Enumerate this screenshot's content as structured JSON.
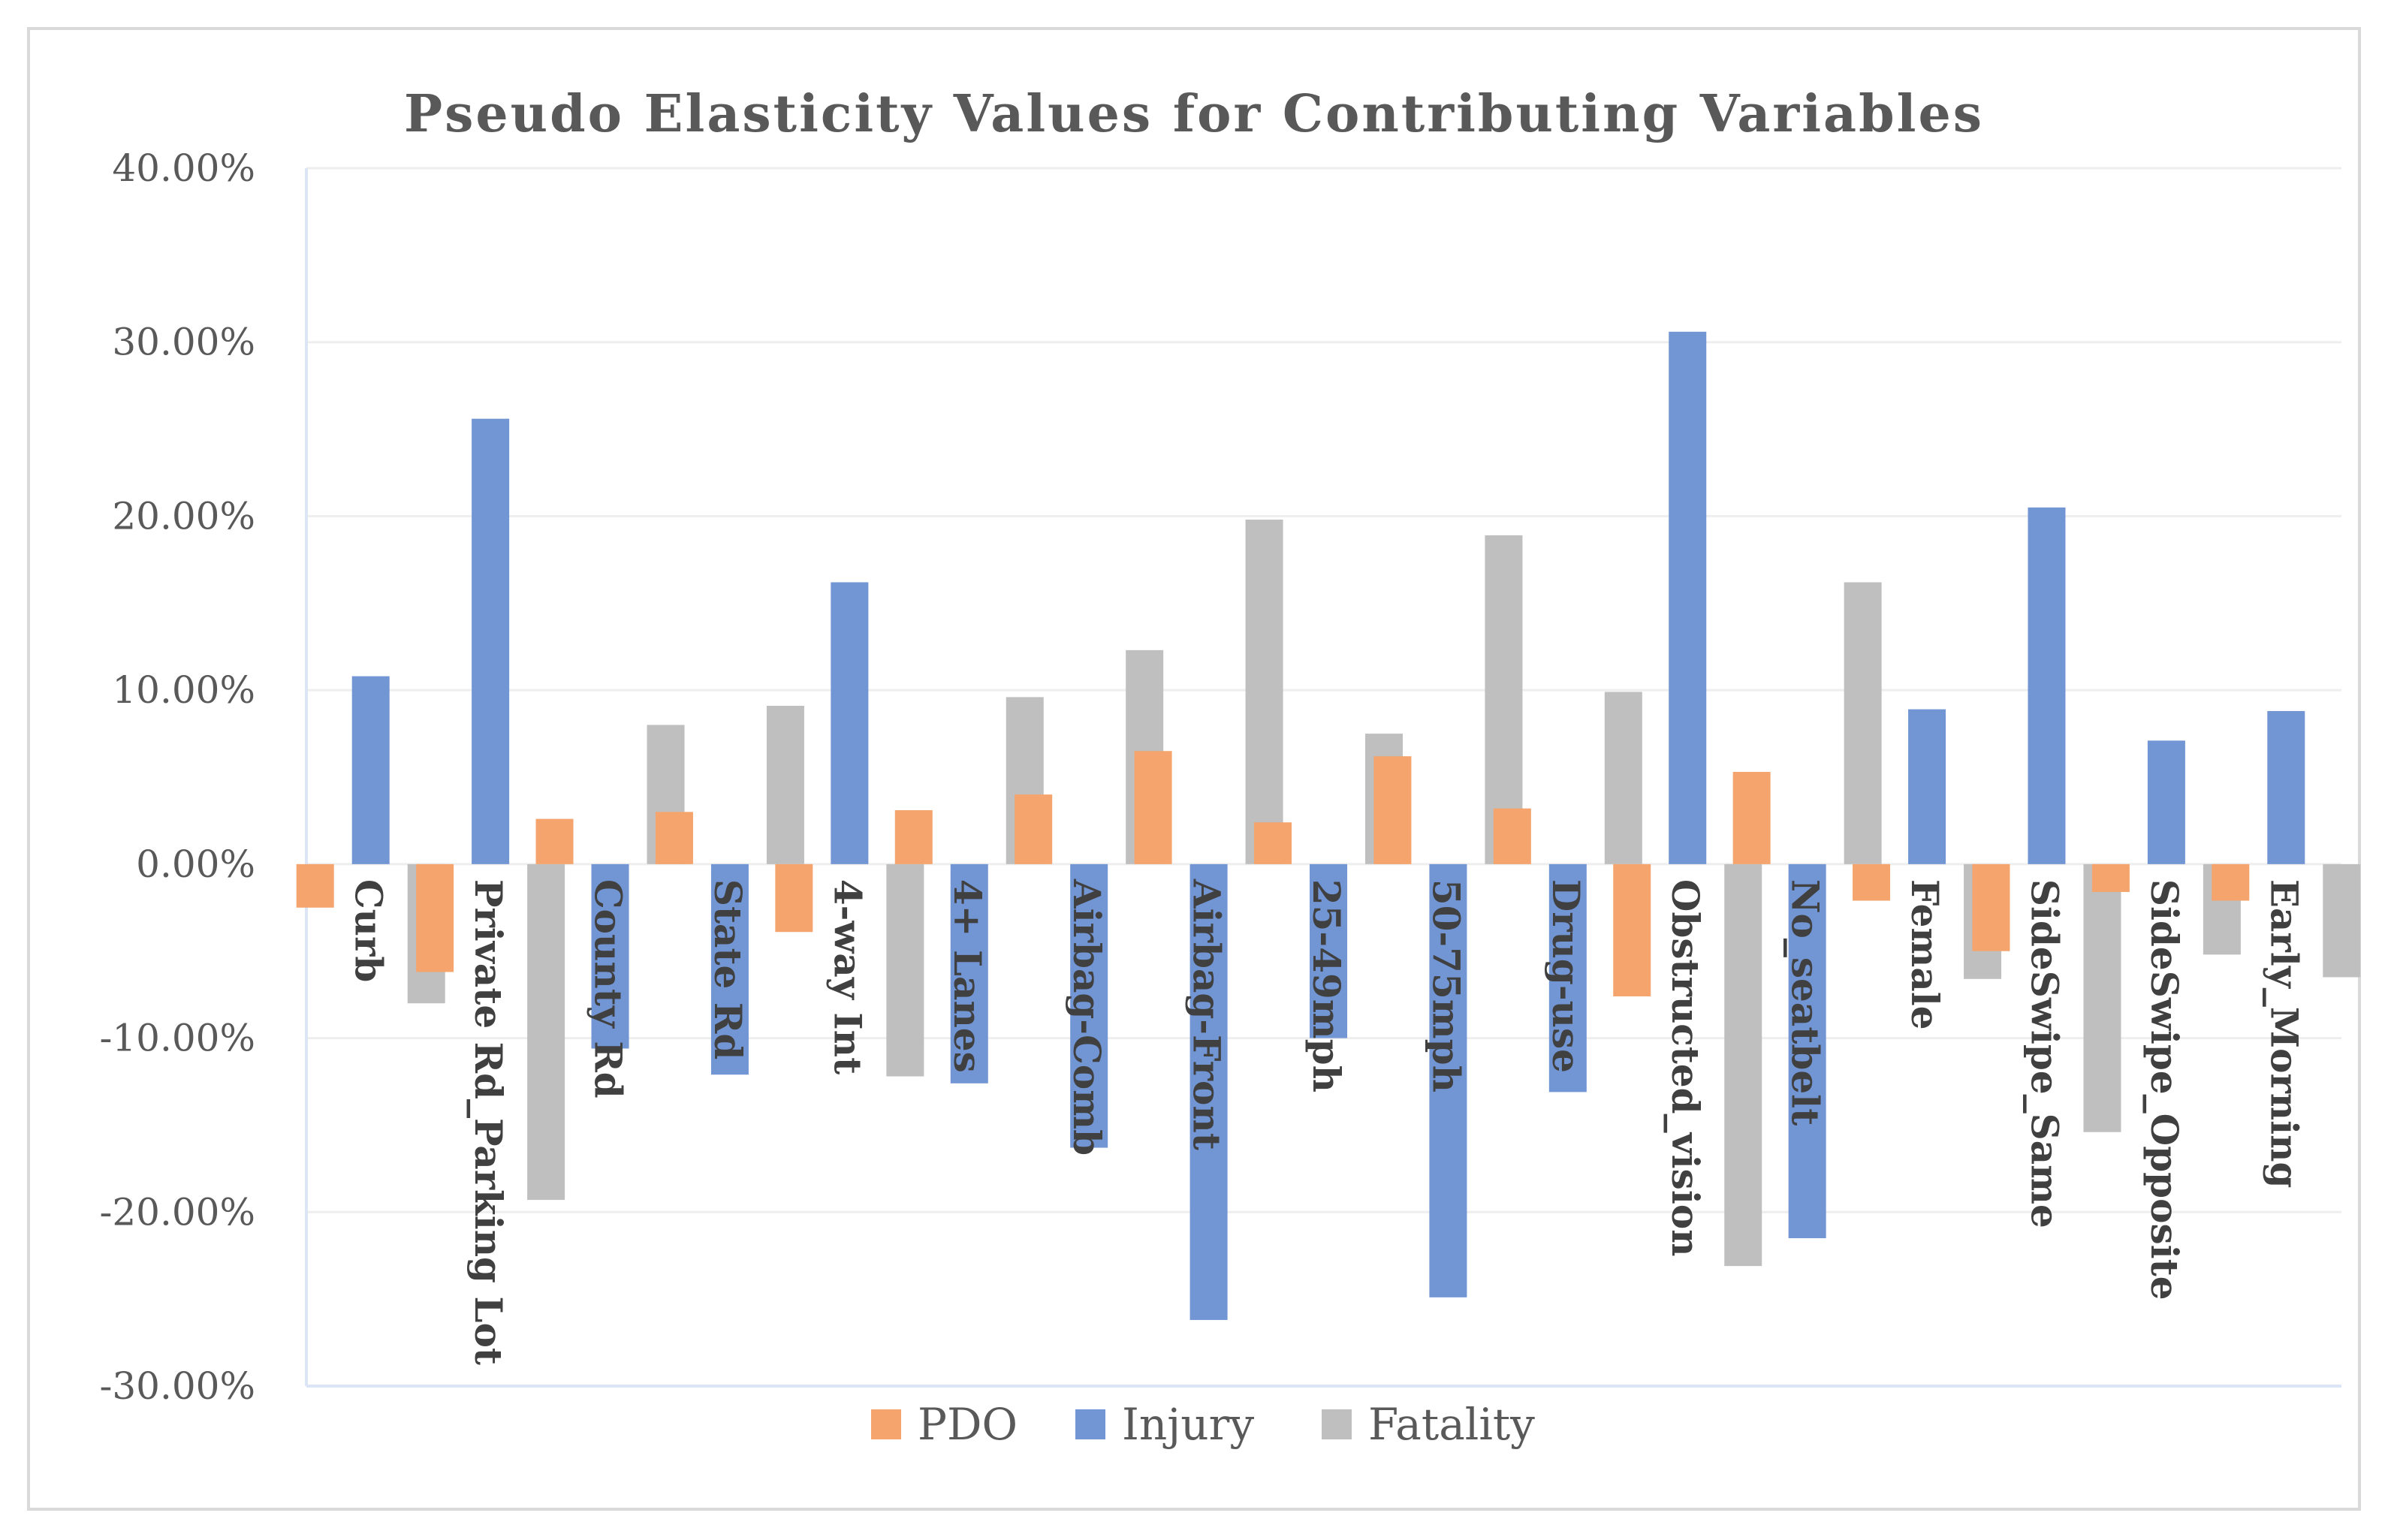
{
  "chart_data": {
    "type": "bar",
    "title": "Pseudo Elasticity Values for Contributing Variables",
    "xlabel": "",
    "ylabel": "",
    "ylim": [
      -30,
      40
    ],
    "y_ticks": [
      "40.00%",
      "30.00%",
      "20.00%",
      "10.00%",
      "0.00%",
      "-10.00%",
      "-20.00%",
      "-30.00%"
    ],
    "y_tick_values": [
      40,
      30,
      20,
      10,
      0,
      -10,
      -20,
      -30
    ],
    "gridlines": true,
    "legend_position": "bottom",
    "categories": [
      "Curb",
      "Private Rd_Parking Lot",
      "County Rd",
      "State Rd",
      "4-way Int",
      "4+ Lanes",
      "Airbag-Comb",
      "Airbag-Front",
      "25-49mph",
      "50-75mph",
      "Drug-use",
      "Obstructed_vision",
      "No_seatbelt",
      "Female",
      "SideSwipe_Same",
      "SideSwipe_Opposite",
      "Early_Morning"
    ],
    "series": [
      {
        "name": "PDO",
        "color": "#f4a46c",
        "values": [
          {
            "pos": -2.5,
            "neg": null
          },
          {
            "pos": -6.2,
            "neg": null
          },
          {
            "pos": 2.6,
            "neg": null
          },
          {
            "pos": 3.0,
            "neg": null
          },
          {
            "pos": -3.9,
            "neg": null
          },
          {
            "pos": 3.1,
            "neg": null
          },
          {
            "pos": 4.0,
            "neg": null
          },
          {
            "pos": 6.5,
            "neg": null
          },
          {
            "pos": 2.4,
            "neg": null
          },
          {
            "pos": 6.2,
            "neg": null
          },
          {
            "pos": 3.2,
            "neg": null
          },
          {
            "pos": -7.6,
            "neg": null
          },
          {
            "pos": 5.3,
            "neg": null
          },
          {
            "pos": -2.1,
            "neg": null
          },
          {
            "pos": -5.0,
            "neg": null
          },
          {
            "pos": -1.6,
            "neg": null
          },
          {
            "pos": -2.1,
            "neg": null
          }
        ]
      },
      {
        "name": "Injury",
        "color": "#7295d4",
        "values": [
          {
            "pos": 10.8,
            "neg": null
          },
          {
            "pos": 25.6,
            "neg": null
          },
          {
            "pos": null,
            "neg": -10.6
          },
          {
            "pos": null,
            "neg": -12.1
          },
          {
            "pos": 16.2,
            "neg": null
          },
          {
            "pos": null,
            "neg": -12.6
          },
          {
            "pos": null,
            "neg": -16.3
          },
          {
            "pos": null,
            "neg": -26.2
          },
          {
            "pos": null,
            "neg": -10.0
          },
          {
            "pos": null,
            "neg": -24.9
          },
          {
            "pos": null,
            "neg": -13.1
          },
          {
            "pos": 30.6,
            "neg": null
          },
          {
            "pos": null,
            "neg": -21.5
          },
          {
            "pos": 8.9,
            "neg": null
          },
          {
            "pos": 20.5,
            "neg": null
          },
          {
            "pos": 7.1,
            "neg": null
          },
          {
            "pos": 8.8,
            "neg": null
          }
        ]
      },
      {
        "name": "Fatality",
        "color": "#bfbfbf",
        "values": [
          {
            "pos": -8.0,
            "neg": null
          },
          {
            "pos": -19.3,
            "neg": null
          },
          {
            "pos": 8.0,
            "neg": null
          },
          {
            "pos": 9.1,
            "neg": null
          },
          {
            "pos": -12.2,
            "neg": null
          },
          {
            "pos": 9.6,
            "neg": null
          },
          {
            "pos": 12.3,
            "neg": null
          },
          {
            "pos": 19.8,
            "neg": null
          },
          {
            "pos": 7.5,
            "neg": null
          },
          {
            "pos": 18.9,
            "neg": null
          },
          {
            "pos": 9.9,
            "neg": null
          },
          {
            "pos": -23.1,
            "neg": null
          },
          {
            "pos": 16.2,
            "neg": null
          },
          {
            "pos": -6.6,
            "neg": null
          },
          {
            "pos": -15.4,
            "neg": null
          },
          {
            "pos": -5.2,
            "neg": null
          },
          {
            "pos": -6.5,
            "neg": null
          }
        ]
      }
    ]
  }
}
